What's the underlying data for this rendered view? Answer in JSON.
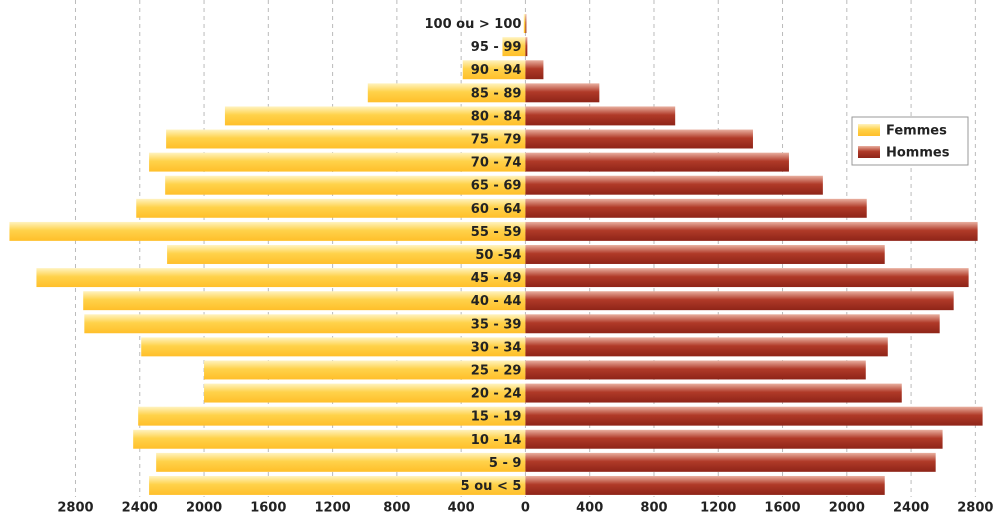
{
  "chart_data": {
    "type": "pyramid",
    "categories": [
      "100 ou > 100",
      "95 - 99",
      "90 - 94",
      "85 - 89",
      "80 - 84",
      "75 - 79",
      "70 - 74",
      "65 - 69",
      "60 - 64",
      "55 - 59",
      "50 -54",
      "45 - 49",
      "40 - 44",
      "35 - 39",
      "30 - 34",
      "25 - 29",
      "20 - 24",
      "15 - 19",
      "10 - 14",
      "5 - 9",
      "5 ou < 5"
    ],
    "series": [
      {
        "name": "Femmes",
        "color": "#ffc93a",
        "side": "left",
        "values": [
          10,
          143,
          390,
          981,
          1870,
          2236,
          2342,
          2242,
          2422,
          3211,
          2230,
          3043,
          2752,
          2745,
          2391,
          2000,
          2000,
          2410,
          2441,
          2298,
          2342
        ]
      },
      {
        "name": "Hommes",
        "color": "#a92f22",
        "side": "right",
        "values": [
          6,
          12,
          112,
          460,
          932,
          1416,
          1640,
          1851,
          2124,
          2814,
          2236,
          2758,
          2665,
          2578,
          2255,
          2118,
          2342,
          2845,
          2596,
          2553,
          2236
        ]
      }
    ],
    "xlim": [
      -3220,
      2860
    ],
    "xticks": [
      {
        "value": -2800,
        "label": "2800"
      },
      {
        "value": -2400,
        "label": "2400"
      },
      {
        "value": -2000,
        "label": "2000"
      },
      {
        "value": -1600,
        "label": "1600"
      },
      {
        "value": -1200,
        "label": "1200"
      },
      {
        "value": -800,
        "label": "800"
      },
      {
        "value": -400,
        "label": "400"
      },
      0,
      400,
      800,
      1200,
      1600,
      2000,
      2400,
      2800
    ],
    "grid": true,
    "legend": "upper right"
  }
}
